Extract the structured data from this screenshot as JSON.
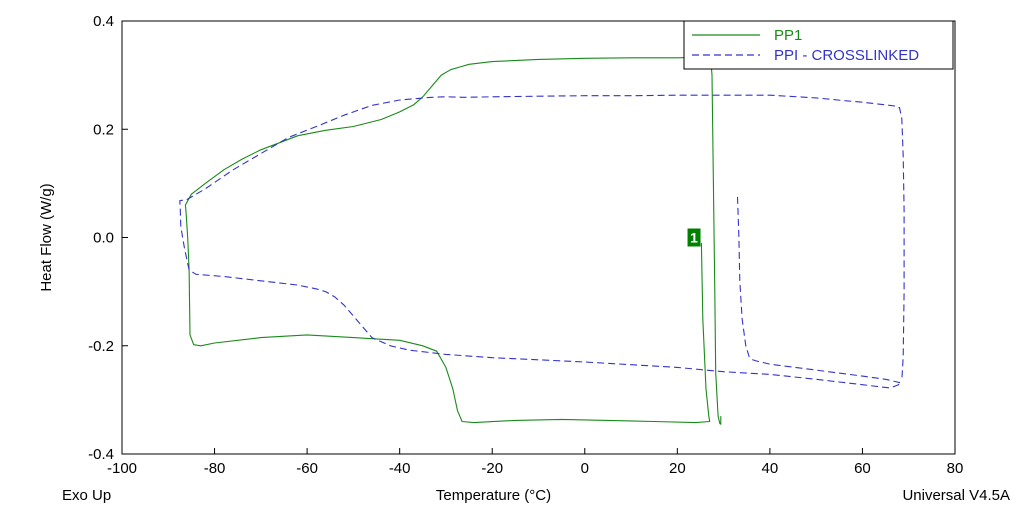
{
  "chart_data": {
    "type": "line",
    "title": "",
    "xlabel": "Temperature (°C)",
    "ylabel": "Heat Flow (W/g)",
    "xlim": [
      -100,
      80
    ],
    "ylim": [
      -0.4,
      0.4
    ],
    "xticks": [
      -100,
      -80,
      -60,
      -40,
      -20,
      0,
      20,
      40,
      60,
      80
    ],
    "yticks": [
      -0.4,
      -0.2,
      0.0,
      0.2,
      0.4
    ],
    "xtick_labels": [
      "-100",
      "-80",
      "-60",
      "-40",
      "-20",
      "0",
      "20",
      "40",
      "60",
      "80"
    ],
    "ytick_labels": [
      "-0.4",
      "-0.2",
      "0.0",
      "0.2",
      "0.4"
    ],
    "grid": false,
    "legend_position": "top-right",
    "corner_left": "Exo Up",
    "corner_right": "Universal V4.5A",
    "annotation": {
      "label": "1",
      "x": 23.5,
      "y": 0.0,
      "color": "#008000"
    },
    "series": [
      {
        "name": "PP1",
        "color": "#1a8a1a",
        "dash": "solid",
        "x": [
          25.2,
          25.5,
          26.2,
          26.8,
          27.0,
          24.0,
          15.0,
          5.0,
          -5.0,
          -15.0,
          -24.0,
          -26.5,
          -27.5,
          -28.5,
          -30.0,
          -32.0,
          -35.0,
          -40.0,
          -50.0,
          -60.0,
          -70.0,
          -80.0,
          -83.0,
          -84.5,
          -85.3,
          -85.5,
          -85.8,
          -86.2,
          -86.3,
          -85.0,
          -82.0,
          -78.0,
          -74.0,
          -70.0,
          -66.0,
          -62.0,
          -56.0,
          -50.0,
          -44.0,
          -40.0,
          -37.0,
          -35.0,
          -33.0,
          -31.0,
          -29.0,
          -27.0,
          -25.0,
          -20.0,
          -10.0,
          0.0,
          10.0,
          20.0,
          24.0,
          26.5,
          27.2,
          27.5,
          27.8,
          28.1,
          28.3,
          28.8,
          29.2,
          29.4,
          29.4
        ],
        "y": [
          -0.01,
          -0.15,
          -0.28,
          -0.33,
          -0.34,
          -0.342,
          -0.34,
          -0.338,
          -0.336,
          -0.338,
          -0.342,
          -0.34,
          -0.32,
          -0.28,
          -0.24,
          -0.21,
          -0.2,
          -0.19,
          -0.185,
          -0.18,
          -0.185,
          -0.195,
          -0.2,
          -0.198,
          -0.18,
          -0.06,
          0.0,
          0.05,
          0.06,
          0.08,
          0.1,
          0.125,
          0.145,
          0.162,
          0.175,
          0.188,
          0.198,
          0.205,
          0.218,
          0.232,
          0.245,
          0.26,
          0.28,
          0.3,
          0.31,
          0.315,
          0.32,
          0.325,
          0.329,
          0.331,
          0.332,
          0.332,
          0.333,
          0.333,
          0.33,
          0.3,
          0.1,
          -0.1,
          -0.25,
          -0.33,
          -0.344,
          -0.345,
          -0.33
        ]
      },
      {
        "name": "PPI - CROSSLINKED",
        "color": "#3333cc",
        "dash": "dashed",
        "x": [
          33.0,
          33.3,
          33.5,
          34.0,
          34.8,
          35.5,
          36.0,
          37.0,
          40.0,
          50.0,
          60.0,
          65.0,
          67.5,
          68.0,
          68.0,
          67.8,
          66.0,
          60.0,
          50.0,
          40.0,
          30.0,
          20.0,
          10.0,
          0.0,
          -10.0,
          -20.0,
          -30.0,
          -38.0,
          -42.0,
          -46.0,
          -48.0,
          -50.0,
          -52.0,
          -54.0,
          -56.0,
          -58.0,
          -62.0,
          -70.0,
          -78.0,
          -84.0,
          -85.5,
          -86.5,
          -87.3,
          -87.4,
          -87.5,
          -86.0,
          -82.0,
          -76.0,
          -70.0,
          -64.0,
          -58.0,
          -52.0,
          -46.0,
          -40.0,
          -36.0,
          -33.0,
          -30.0,
          -26.0,
          -20.0,
          -10.0,
          0.0,
          10.0,
          20.0,
          30.0,
          40.0,
          50.0,
          56.0,
          60.0,
          63.0,
          65.0,
          66.0,
          67.0,
          67.6,
          67.8,
          68.0,
          68.5,
          68.8,
          69.0,
          69.0,
          68.8,
          68.5
        ],
        "y": [
          0.075,
          0.0,
          -0.08,
          -0.15,
          -0.2,
          -0.22,
          -0.225,
          -0.228,
          -0.234,
          -0.245,
          -0.256,
          -0.262,
          -0.267,
          -0.268,
          -0.265,
          -0.272,
          -0.278,
          -0.272,
          -0.262,
          -0.253,
          -0.248,
          -0.24,
          -0.235,
          -0.23,
          -0.226,
          -0.222,
          -0.216,
          -0.208,
          -0.2,
          -0.185,
          -0.165,
          -0.145,
          -0.125,
          -0.11,
          -0.1,
          -0.095,
          -0.088,
          -0.08,
          -0.072,
          -0.068,
          -0.06,
          -0.02,
          0.02,
          0.05,
          0.068,
          0.07,
          0.09,
          0.125,
          0.155,
          0.185,
          0.205,
          0.226,
          0.244,
          0.254,
          0.257,
          0.259,
          0.26,
          0.259,
          0.26,
          0.261,
          0.262,
          0.262,
          0.263,
          0.263,
          0.263,
          0.258,
          0.253,
          0.25,
          0.247,
          0.245,
          0.244,
          0.243,
          0.242,
          0.24,
          0.24,
          0.22,
          0.15,
          0.05,
          -0.1,
          -0.22,
          -0.265
        ]
      }
    ]
  }
}
